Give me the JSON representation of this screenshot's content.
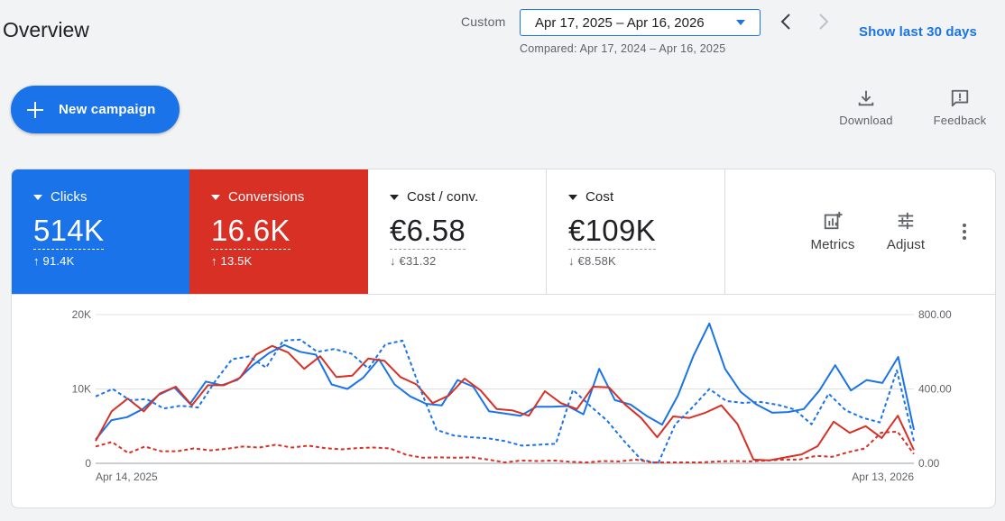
{
  "header": {
    "title": "Overview",
    "range_label": "Custom",
    "date_range": "Apr 17, 2025 – Apr 16, 2026",
    "compared": "Compared: Apr 17, 2024 – Apr 16, 2025",
    "show_last": "Show last 30 days"
  },
  "actions": {
    "new_campaign": "New campaign",
    "download": "Download",
    "feedback": "Feedback"
  },
  "tiles": [
    {
      "name": "Clicks",
      "value": "514K",
      "delta": "91.4K",
      "direction": "up",
      "color": "#1a73e8"
    },
    {
      "name": "Conversions",
      "value": "16.6K",
      "delta": "13.5K",
      "direction": "up",
      "color": "#d93025"
    },
    {
      "name": "Cost / conv.",
      "value": "€6.58",
      "delta": "€31.32",
      "direction": "down"
    },
    {
      "name": "Cost",
      "value": "€109K",
      "delta": "€8.58K",
      "direction": "down"
    }
  ],
  "controls": {
    "metrics": "Metrics",
    "adjust": "Adjust"
  },
  "chart_data": {
    "type": "line",
    "x_start_label": "Apr 14, 2025",
    "x_end_label": "Apr 13, 2026",
    "y_left_ticks": [
      "0",
      "10K",
      "20K"
    ],
    "y_left_lim": [
      0,
      20000
    ],
    "y_right_ticks": [
      "0.00",
      "400.00",
      "800.00"
    ],
    "y_right_lim": [
      0,
      800
    ],
    "grid": true,
    "series": [
      {
        "axis": "left",
        "style": "solid",
        "color": "#1a73e8",
        "values": [
          3200,
          5800,
          6200,
          7300,
          9200,
          10200,
          8000,
          11000,
          10500,
          11200,
          13200,
          14800,
          15900,
          15000,
          14600,
          10600,
          10000,
          11500,
          14000,
          10600,
          9000,
          8000,
          7800,
          11200,
          10300,
          7000,
          6700,
          6400,
          7600,
          7600,
          7700,
          6600,
          12700,
          8500,
          7900,
          6400,
          5200,
          9100,
          14500,
          18800,
          12700,
          9600,
          7900,
          6800,
          6900,
          7300,
          9800,
          13200,
          9800,
          11200,
          10800,
          14300,
          4500
        ]
      },
      {
        "axis": "left",
        "style": "solid",
        "color": "#d93025",
        "values": [
          3000,
          7000,
          8700,
          7000,
          9400,
          10300,
          7800,
          10500,
          10500,
          11500,
          14600,
          15800,
          14900,
          12700,
          14400,
          11600,
          11800,
          14100,
          13800,
          11600,
          10600,
          8100,
          9100,
          11400,
          9800,
          7300,
          7100,
          6400,
          9700,
          8100,
          7300,
          10300,
          10200,
          7900,
          6100,
          3500,
          6300,
          6100,
          6800,
          7800,
          5300,
          500,
          400,
          800,
          1200,
          2300,
          5600,
          4100,
          5000,
          3400,
          6400,
          1800
        ]
      },
      {
        "axis": "right",
        "style": "dashed",
        "color": "#1a73e8",
        "values": [
          360,
          400,
          340,
          345,
          295,
          310,
          300,
          440,
          560,
          575,
          515,
          660,
          665,
          600,
          615,
          590,
          510,
          640,
          660,
          410,
          180,
          150,
          140,
          135,
          120,
          95,
          100,
          105,
          395,
          310,
          230,
          120,
          20,
          0,
          210,
          300,
          400,
          335,
          325,
          330,
          315,
          290,
          210,
          375,
          285,
          245,
          220,
          500,
          120
        ]
      },
      {
        "axis": "right",
        "style": "dashed",
        "color": "#d93025",
        "values": [
          90,
          115,
          55,
          90,
          65,
          65,
          80,
          70,
          78,
          90,
          85,
          100,
          85,
          95,
          82,
          75,
          82,
          85,
          80,
          45,
          30,
          32,
          30,
          32,
          20,
          5,
          15,
          12,
          15,
          8,
          5,
          12,
          10,
          20,
          5,
          5,
          5,
          5,
          10,
          12,
          10,
          15,
          20,
          20,
          40,
          35,
          60,
          80,
          165,
          170,
          50
        ]
      }
    ]
  }
}
